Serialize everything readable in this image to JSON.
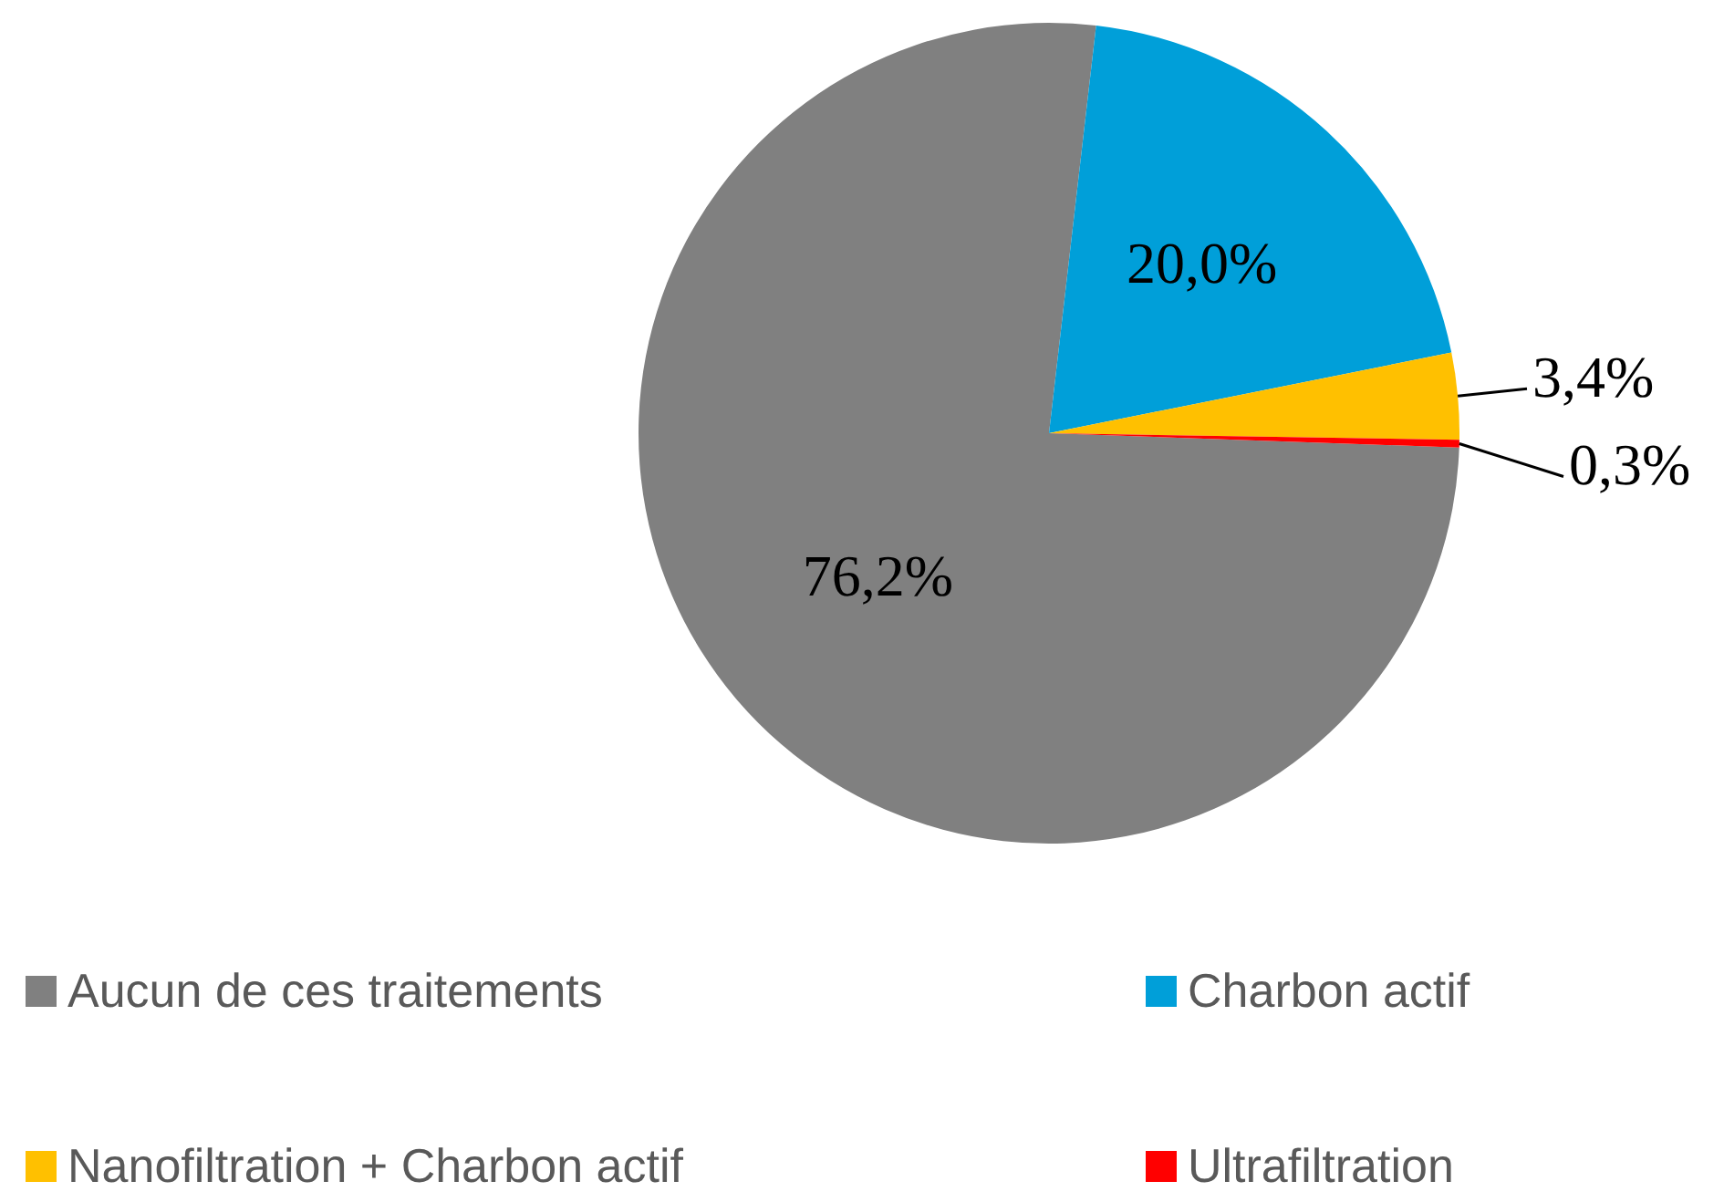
{
  "chart_data": {
    "type": "pie",
    "categories": [
      "Aucun de ces traitements",
      "Charbon actif",
      "Nanofiltration + Charbon actif",
      "Ultrafiltration"
    ],
    "values": [
      76.2,
      20.0,
      3.4,
      0.3
    ],
    "colors": [
      "#808080",
      "#009fd9",
      "#ffc000",
      "#ff0000"
    ],
    "value_labels": [
      "76,2%",
      "20,0%",
      "3,4%",
      "0,3%"
    ],
    "legend": "bottom"
  }
}
